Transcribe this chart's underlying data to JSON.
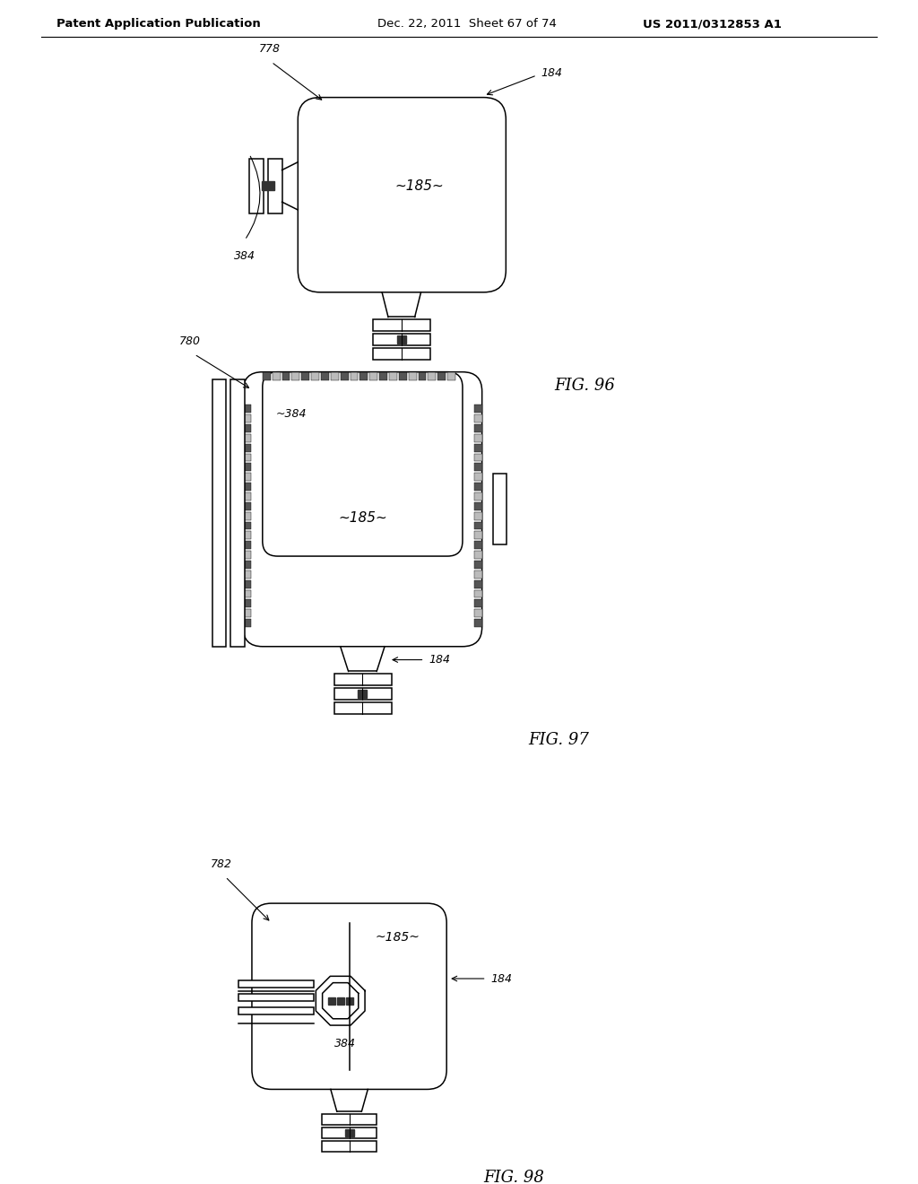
{
  "bg_color": "#ffffff",
  "lc": "#000000",
  "header": "Patent Application Publication    Dec. 22, 2011  Sheet 67 of 74    US 2011/0312853 A1",
  "fig96_label": "FIG. 96",
  "fig97_label": "FIG. 97",
  "fig98_label": "FIG. 98",
  "lw": 1.1
}
